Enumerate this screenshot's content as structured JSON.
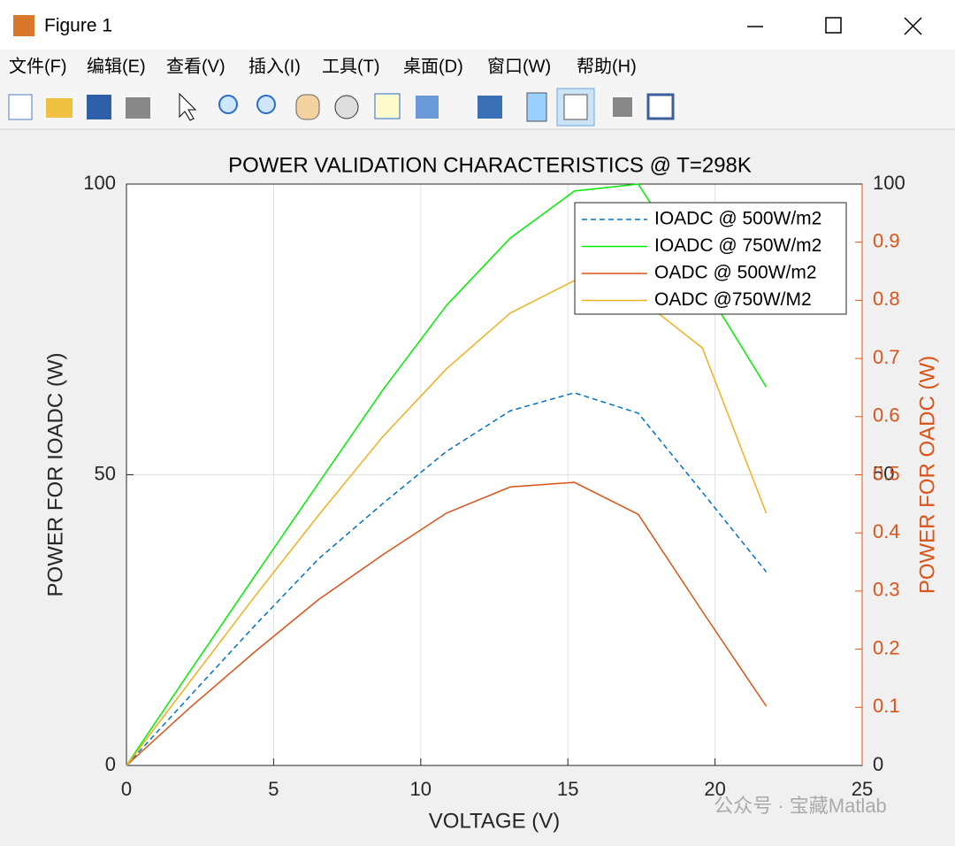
{
  "window": {
    "title": "Figure 1",
    "menu": [
      "文件(F)",
      "编辑(E)",
      "查看(V)",
      "插入(I)",
      "工具(T)",
      "桌面(D)",
      "窗口(W)",
      "帮助(H)"
    ]
  },
  "watermark": "公众号 · 宝藏Matlab",
  "chart_data": {
    "type": "line",
    "title": "POWER VALIDATION CHARACTERISTICS @ T=298K",
    "xlabel": "VOLTAGE (V)",
    "ylabel": "POWER FOR IOADC (W)",
    "y2label": "POWER FOR OADC (W)",
    "x": [
      0,
      2.17,
      4.35,
      6.52,
      8.7,
      10.87,
      13.04,
      15.22,
      17.39,
      19.57,
      21.74
    ],
    "series": [
      {
        "name": "IOADC @ 500W/m2",
        "color": "#0072bd",
        "line_style": "dashed",
        "values": [
          0,
          12,
          24,
          35.5,
          45,
          54,
          61,
          64.1,
          60.6,
          47,
          33.3
        ]
      },
      {
        "name": "IOADC @ 750W/m2",
        "color": "#00ee00",
        "line_style": "solid",
        "values": [
          0,
          16.3,
          32.5,
          48.5,
          64.5,
          79.1,
          90.7,
          98.8,
          100,
          83,
          65.1
        ]
      },
      {
        "name": "OADC @ 500W/m2",
        "color": "#d95319",
        "line_style": "solid",
        "values": [
          0,
          10,
          19.5,
          28.5,
          36.2,
          43.4,
          47.9,
          48.7,
          43.2,
          26.5,
          10.2
        ]
      },
      {
        "name": "OADC @750W/M2",
        "color": "#edb120",
        "line_style": "solid",
        "values": [
          0,
          14.5,
          29,
          43,
          56.5,
          68.2,
          77.8,
          83.4,
          80.5,
          71.8,
          43.4
        ]
      }
    ],
    "xlim": [
      0,
      25
    ],
    "xticks": [
      0,
      5,
      10,
      15,
      20,
      25
    ],
    "ylim": [
      0,
      100
    ],
    "yticks": [
      0,
      50,
      100
    ],
    "y2lim": [
      0,
      1
    ],
    "y2ticks": [
      0.1,
      0.2,
      0.3,
      0.4,
      0.5,
      0.6,
      0.7,
      0.8,
      0.9
    ],
    "y2color": "#d95319",
    "grid": true,
    "legend": "upper right"
  }
}
